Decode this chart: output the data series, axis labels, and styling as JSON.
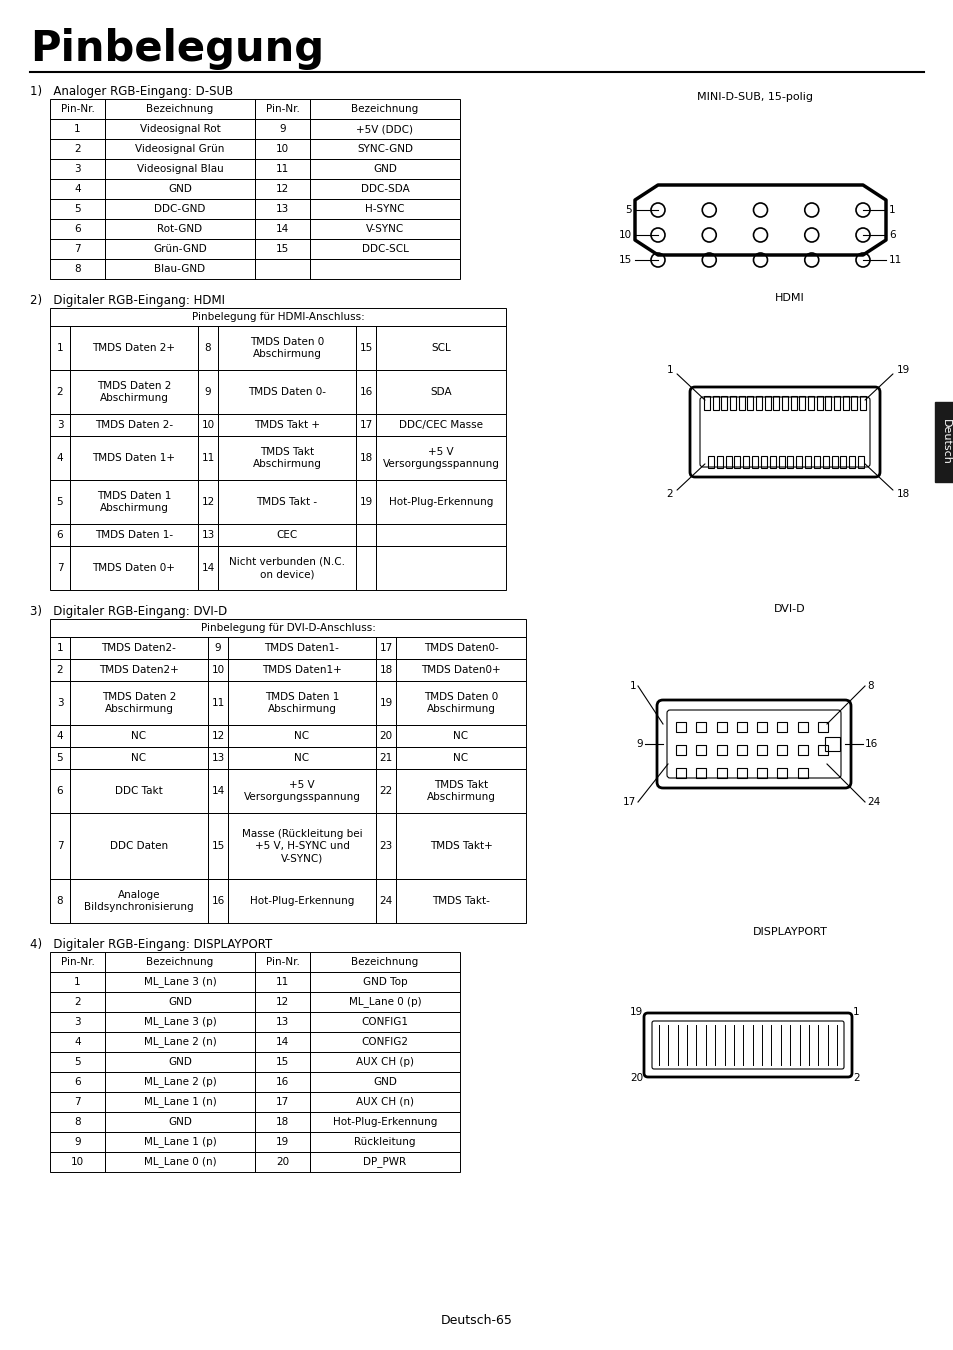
{
  "title": "Pinbelegung",
  "footer": "Deutsch-65",
  "bg_color": "#ffffff",
  "section1_label": "1)   Analoger RGB-Eingang: D-SUB",
  "section2_label": "2)   Digitaler RGB-Eingang: HDMI",
  "section3_label": "3)   Digitaler RGB-Eingang: DVI-D",
  "section4_label": "4)   Digitaler RGB-Eingang: DISPLAYPORT",
  "table1_headers": [
    "Pin-Nr.",
    "Bezeichnung",
    "Pin-Nr.",
    "Bezeichnung"
  ],
  "table1_rows": [
    [
      "1",
      "Videosignal Rot",
      "9",
      "+5V (DDC)"
    ],
    [
      "2",
      "Videosignal Grün",
      "10",
      "SYNC-GND"
    ],
    [
      "3",
      "Videosignal Blau",
      "11",
      "GND"
    ],
    [
      "4",
      "GND",
      "12",
      "DDC-SDA"
    ],
    [
      "5",
      "DDC-GND",
      "13",
      "H-SYNC"
    ],
    [
      "6",
      "Rot-GND",
      "14",
      "V-SYNC"
    ],
    [
      "7",
      "Grün-GND",
      "15",
      "DDC-SCL"
    ],
    [
      "8",
      "Blau-GND",
      "",
      ""
    ]
  ],
  "table2_title": "Pinbelegung für HDMI-Anschluss:",
  "table2_rows": [
    [
      "1",
      "TMDS Daten 2+",
      "8",
      "TMDS Daten 0\nAbschirmung",
      "15",
      "SCL"
    ],
    [
      "2",
      "TMDS Daten 2\nAbschirmung",
      "9",
      "TMDS Daten 0-",
      "16",
      "SDA"
    ],
    [
      "3",
      "TMDS Daten 2-",
      "10",
      "TMDS Takt +",
      "17",
      "DDC/CEC Masse"
    ],
    [
      "4",
      "TMDS Daten 1+",
      "11",
      "TMDS Takt\nAbschirmung",
      "18",
      "+5 V\nVersorgungsspannung"
    ],
    [
      "5",
      "TMDS Daten 1\nAbschirmung",
      "12",
      "TMDS Takt -",
      "19",
      "Hot-Plug-Erkennung"
    ],
    [
      "6",
      "TMDS Daten 1-",
      "13",
      "CEC",
      "",
      ""
    ],
    [
      "7",
      "TMDS Daten 0+",
      "14",
      "Nicht verbunden (N.C.\non device)",
      "",
      ""
    ]
  ],
  "table3_title": "Pinbelegung für DVI-D-Anschluss:",
  "table3_rows": [
    [
      "1",
      "TMDS Daten2-",
      "9",
      "TMDS Daten1-",
      "17",
      "TMDS Daten0-"
    ],
    [
      "2",
      "TMDS Daten2+",
      "10",
      "TMDS Daten1+",
      "18",
      "TMDS Daten0+"
    ],
    [
      "3",
      "TMDS Daten 2\nAbschirmung",
      "11",
      "TMDS Daten 1\nAbschirmung",
      "19",
      "TMDS Daten 0\nAbschirmung"
    ],
    [
      "4",
      "NC",
      "12",
      "NC",
      "20",
      "NC"
    ],
    [
      "5",
      "NC",
      "13",
      "NC",
      "21",
      "NC"
    ],
    [
      "6",
      "DDC Takt",
      "14",
      "+5 V\nVersorgungsspannung",
      "22",
      "TMDS Takt\nAbschirmung"
    ],
    [
      "7",
      "DDC Daten",
      "15",
      "Masse (Rückleitung bei\n+5 V, H-SYNC und\nV-SYNC)",
      "23",
      "TMDS Takt+"
    ],
    [
      "8",
      "Analoge\nBildsynchronisierung",
      "16",
      "Hot-Plug-Erkennung",
      "24",
      "TMDS Takt-"
    ]
  ],
  "table4_headers": [
    "Pin-Nr.",
    "Bezeichnung",
    "Pin-Nr.",
    "Bezeichnung"
  ],
  "table4_rows": [
    [
      "1",
      "ML_Lane 3 (n)",
      "11",
      "GND Top"
    ],
    [
      "2",
      "GND",
      "12",
      "ML_Lane 0 (p)"
    ],
    [
      "3",
      "ML_Lane 3 (p)",
      "13",
      "CONFIG1"
    ],
    [
      "4",
      "ML_Lane 2 (n)",
      "14",
      "CONFIG2"
    ],
    [
      "5",
      "GND",
      "15",
      "AUX CH (p)"
    ],
    [
      "6",
      "ML_Lane 2 (p)",
      "16",
      "GND"
    ],
    [
      "7",
      "ML_Lane 1 (n)",
      "17",
      "AUX CH (n)"
    ],
    [
      "8",
      "GND",
      "18",
      "Hot-Plug-Erkennung"
    ],
    [
      "9",
      "ML_Lane 1 (p)",
      "19",
      "Rückleitung"
    ],
    [
      "10",
      "ML_Lane 0 (n)",
      "20",
      "DP_PWR"
    ]
  ],
  "dsub_label": "MINI-D-SUB, 15-polig",
  "hdmi_label": "HDMI",
  "dvid_label": "DVI-D",
  "dp_label": "DISPLAYPORT",
  "deutsch_tab": "Deutsch"
}
